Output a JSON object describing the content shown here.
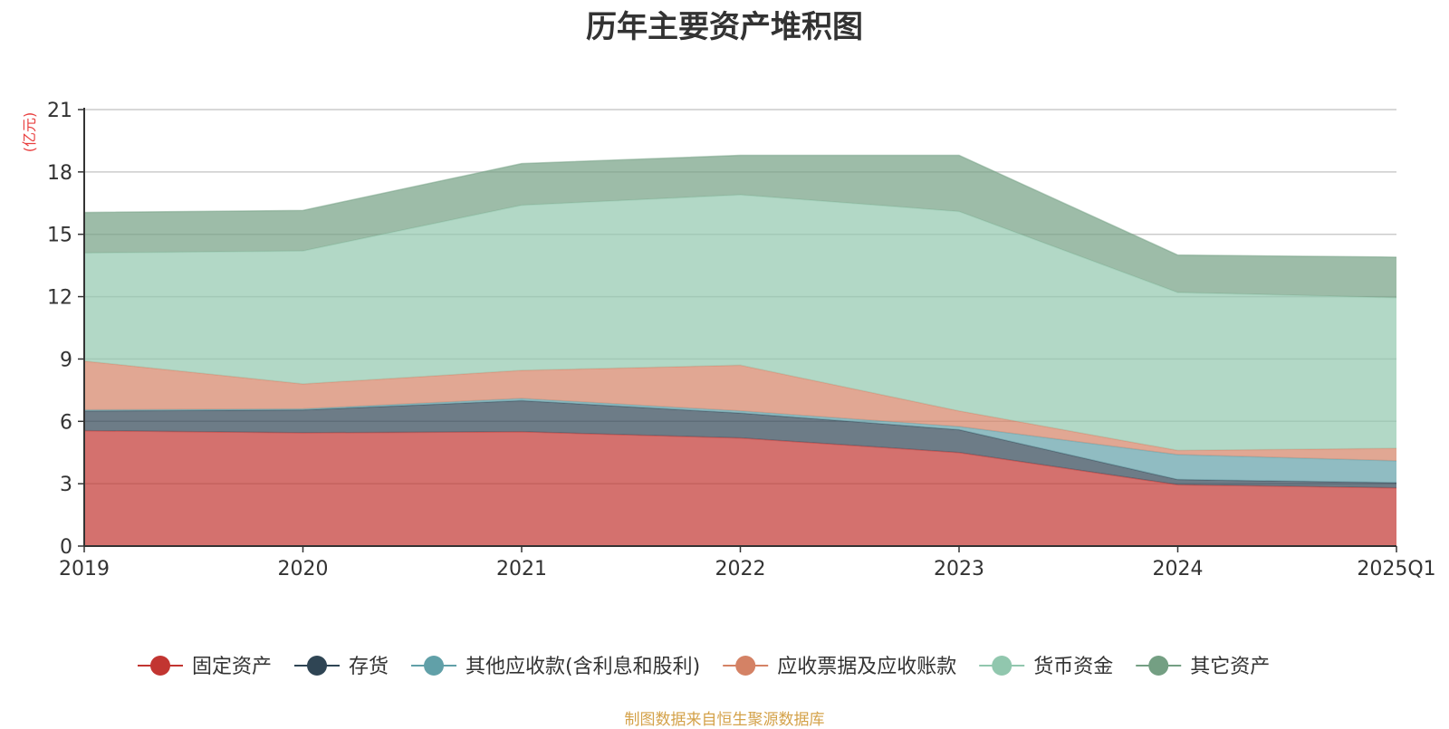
{
  "colors": {
    "series": [
      "#c23531",
      "#2f4554",
      "#61a0a8",
      "#d48265",
      "#91c7ae",
      "#749f83"
    ],
    "grid": "#cccccc",
    "axis": "#333333",
    "unit": "#e83f3f",
    "source": "#d4a24a"
  },
  "chart_data": {
    "type": "area",
    "stacked": true,
    "title": "历年主要资产堆积图",
    "ylabel": "亿元",
    "unit_label": "(亿元)",
    "ylim": [
      0,
      21
    ],
    "yticks": [
      "0",
      "3",
      "6",
      "9",
      "12",
      "15",
      "18",
      "21"
    ],
    "categories": [
      "2019",
      "2020",
      "2021",
      "2022",
      "2023",
      "2024",
      "2025Q1"
    ],
    "grid": true,
    "legend_position": "bottom",
    "series": [
      {
        "name": "固定资产",
        "values": [
          5.55,
          5.45,
          5.5,
          5.2,
          4.5,
          2.95,
          2.8
        ]
      },
      {
        "name": "存货",
        "values": [
          0.95,
          1.1,
          1.5,
          1.2,
          1.1,
          0.25,
          0.25
        ]
      },
      {
        "name": "其他应收款(含利息和股利)",
        "values": [
          0.05,
          0.05,
          0.1,
          0.1,
          0.15,
          1.2,
          1.05
        ]
      },
      {
        "name": "应收票据及应收账款",
        "values": [
          2.35,
          1.2,
          1.35,
          2.2,
          0.75,
          0.2,
          0.6
        ]
      },
      {
        "name": "货币资金",
        "values": [
          5.2,
          6.4,
          7.95,
          8.2,
          9.6,
          7.6,
          7.25
        ]
      },
      {
        "name": "其它资产",
        "values": [
          1.95,
          1.95,
          2.0,
          1.9,
          2.7,
          1.8,
          1.95
        ]
      }
    ],
    "source_note": "制图数据来自恒生聚源数据库"
  }
}
